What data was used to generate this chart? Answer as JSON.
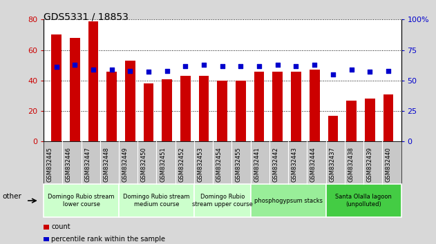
{
  "title": "GDS5331 / 18853",
  "samples": [
    "GSM832445",
    "GSM832446",
    "GSM832447",
    "GSM832448",
    "GSM832449",
    "GSM832450",
    "GSM832451",
    "GSM832452",
    "GSM832453",
    "GSM832454",
    "GSM832455",
    "GSM832441",
    "GSM832442",
    "GSM832443",
    "GSM832444",
    "GSM832437",
    "GSM832438",
    "GSM832439",
    "GSM832440"
  ],
  "counts": [
    70,
    68,
    79,
    46,
    53,
    38,
    41,
    43,
    43,
    40,
    40,
    46,
    46,
    46,
    47,
    17,
    27,
    28,
    31
  ],
  "percentiles": [
    61,
    63,
    59,
    59,
    58,
    57,
    58,
    62,
    63,
    62,
    62,
    62,
    63,
    62,
    63,
    55,
    59,
    57,
    58
  ],
  "groups": [
    {
      "label": "Domingo Rubio stream\nlower course",
      "start": 0,
      "end": 4,
      "color": "#ccffcc"
    },
    {
      "label": "Domingo Rubio stream\nmedium course",
      "start": 4,
      "end": 8,
      "color": "#ccffcc"
    },
    {
      "label": "Domingo Rubio\nstream upper course",
      "start": 8,
      "end": 11,
      "color": "#ccffcc"
    },
    {
      "label": "phosphogypsum stacks",
      "start": 11,
      "end": 15,
      "color": "#99ee99"
    },
    {
      "label": "Santa Olalla lagoon\n(unpolluted)",
      "start": 15,
      "end": 19,
      "color": "#44cc44"
    }
  ],
  "bar_color": "#cc0000",
  "dot_color": "#0000cc",
  "left_ylim": [
    0,
    80
  ],
  "right_ylim": [
    0,
    100
  ],
  "left_yticks": [
    0,
    20,
    40,
    60,
    80
  ],
  "right_yticks": [
    0,
    25,
    50,
    75,
    100
  ],
  "left_yticklabels": [
    "0",
    "20",
    "40",
    "60",
    "80"
  ],
  "right_yticklabels": [
    "0",
    "25",
    "50",
    "75",
    "100%"
  ],
  "bg_color": "#d8d8d8",
  "plot_bg_color": "#ffffff",
  "tick_area_color": "#c8c8c8",
  "other_label": "other",
  "legend_count": "count",
  "legend_percentile": "percentile rank within the sample",
  "title_fontsize": 10,
  "tick_label_fontsize": 6,
  "group_label_fontsize": 6,
  "legend_fontsize": 7
}
